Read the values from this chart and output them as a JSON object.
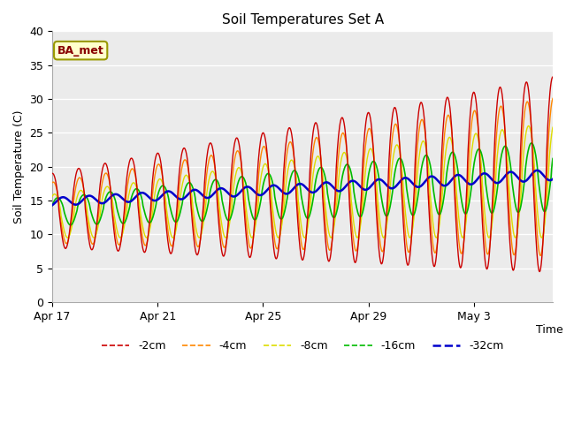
{
  "title": "Soil Temperatures Set A",
  "xlabel": "Time",
  "ylabel": "Soil Temperature (C)",
  "ylim": [
    0,
    40
  ],
  "x_tick_labels": [
    "Apr 17",
    "Apr 21",
    "Apr 25",
    "Apr 29",
    "May 3"
  ],
  "x_tick_positions": [
    0,
    4,
    8,
    12,
    16
  ],
  "annotation": "BA_met",
  "bg_color": "#ebebeb",
  "fig_color": "#ffffff",
  "colors": {
    "-2cm": "#cc0000",
    "-4cm": "#ff8800",
    "-8cm": "#dddd00",
    "-16cm": "#00bb00",
    "-32cm": "#0000cc"
  },
  "legend_labels": [
    "-2cm",
    "-4cm",
    "-8cm",
    "-16cm",
    "-32cm"
  ],
  "days": 19,
  "samples_per_day": 48
}
